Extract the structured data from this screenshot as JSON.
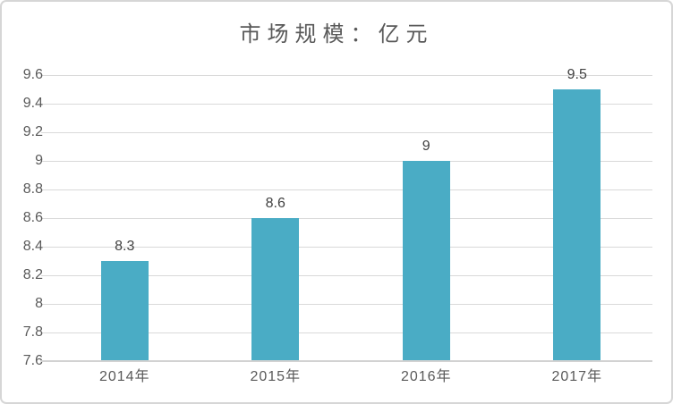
{
  "chart_data": {
    "type": "bar",
    "title": "市场规模：亿元",
    "categories": [
      "2014年",
      "2015年",
      "2016年",
      "2017年"
    ],
    "values": [
      8.3,
      8.6,
      9,
      9.5
    ],
    "value_labels": [
      "8.3",
      "8.6",
      "9",
      "9.5"
    ],
    "y_ticks": [
      7.6,
      7.8,
      8,
      8.2,
      8.4,
      8.6,
      8.8,
      9,
      9.2,
      9.4,
      9.6
    ],
    "y_tick_labels": [
      "7.6",
      "7.8",
      "8",
      "8.2",
      "8.4",
      "8.6",
      "8.8",
      "9",
      "9.2",
      "9.4",
      "9.6"
    ],
    "ylim": [
      7.6,
      9.6
    ],
    "xlabel": "",
    "ylabel": "",
    "grid": true,
    "legend": false,
    "colors": {
      "bar": "#4AACC5",
      "gridline": "#d9d9d9",
      "axis_line": "#d2d2d2",
      "title_text": "#595959",
      "tick_text": "#595959",
      "value_label_text": "#404040"
    }
  }
}
